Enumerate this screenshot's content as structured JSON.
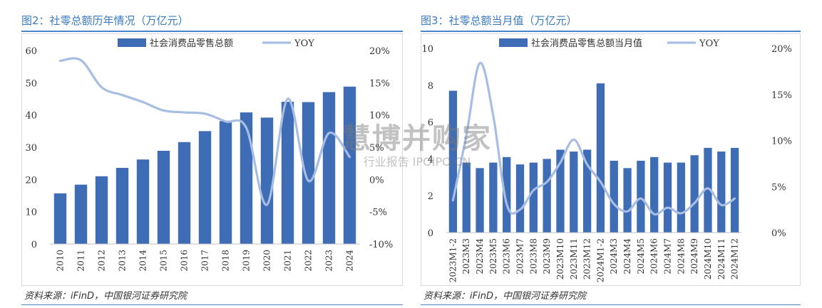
{
  "left_panel": {
    "title": "图2：社零总额历年情况（万亿元）",
    "source": "资料来源：iFinD，中国银河证券研究院"
  },
  "right_panel": {
    "title": "图3：社零总额当月值（万亿元）",
    "source": "资料来源：iFinD，中国银河证券研究院"
  },
  "watermark": {
    "line1": "慧博并购家",
    "line2": "行业报告 IPOIPO.CN"
  },
  "colors": {
    "bar": "#3f6db5",
    "line": "#a7bde3",
    "title": "#3a7bbf",
    "rule": "#4a86c5"
  },
  "chart_data": [
    {
      "type": "bar",
      "categories": [
        "2010",
        "2011",
        "2012",
        "2013",
        "2014",
        "2015",
        "2016",
        "2017",
        "2018",
        "2019",
        "2020",
        "2021",
        "2022",
        "2023",
        "2024"
      ],
      "series": [
        {
          "name": "社会消费品零售总额",
          "type": "bar",
          "axis": "left",
          "values": [
            15.7,
            18.4,
            21.0,
            23.6,
            26.2,
            28.9,
            31.6,
            35.0,
            38.1,
            40.8,
            39.2,
            44.1,
            44.0,
            47.1,
            48.8
          ]
        },
        {
          "name": "YOY",
          "type": "line",
          "axis": "right",
          "values": [
            18.4,
            18.5,
            14.3,
            13.1,
            12.0,
            10.7,
            10.4,
            10.2,
            9.0,
            8.0,
            -3.9,
            12.5,
            -0.2,
            7.2,
            3.5
          ]
        }
      ],
      "y_left": {
        "min": 0,
        "max": 60,
        "ticks": [
          "0",
          "10",
          "20",
          "30",
          "40",
          "50",
          "60"
        ]
      },
      "y_right": {
        "min": -10,
        "max": 20,
        "ticks": [
          "-10%",
          "-5%",
          "0%",
          "5%",
          "10%",
          "15%",
          "20%"
        ]
      }
    },
    {
      "type": "bar",
      "categories": [
        "2023M1-2",
        "2023M3",
        "2023M4",
        "2023M5",
        "2023M6",
        "2023M7",
        "2023M8",
        "2023M9",
        "2023M10",
        "2023M11",
        "2023M12",
        "2024M1-2",
        "2024M3",
        "2024M4",
        "2024M5",
        "2024M6",
        "2024M7",
        "2024M8",
        "2024M9",
        "2024M10",
        "2024M11",
        "2024M12"
      ],
      "series": [
        {
          "name": "社会消费品零售总额当月值",
          "type": "bar",
          "axis": "left",
          "values": [
            7.7,
            3.8,
            3.5,
            3.8,
            4.1,
            3.7,
            3.8,
            4.0,
            4.5,
            4.4,
            4.5,
            8.1,
            3.9,
            3.5,
            3.9,
            4.1,
            3.8,
            3.8,
            4.2,
            4.6,
            4.4,
            4.6
          ]
        },
        {
          "name": "YOY",
          "type": "line",
          "axis": "right",
          "values": [
            3.5,
            10.6,
            18.4,
            12.7,
            3.1,
            2.5,
            4.6,
            5.5,
            7.6,
            10.1,
            7.4,
            5.5,
            3.1,
            2.3,
            3.7,
            2.0,
            2.7,
            2.1,
            3.2,
            4.8,
            3.0,
            3.7
          ]
        }
      ],
      "y_left": {
        "min": 0,
        "max": 10,
        "ticks": [
          "0",
          "2",
          "4",
          "6",
          "8",
          "10"
        ]
      },
      "y_right": {
        "min": 0,
        "max": 20,
        "ticks": [
          "0%",
          "5%",
          "10%",
          "15%",
          "20%"
        ]
      }
    }
  ]
}
